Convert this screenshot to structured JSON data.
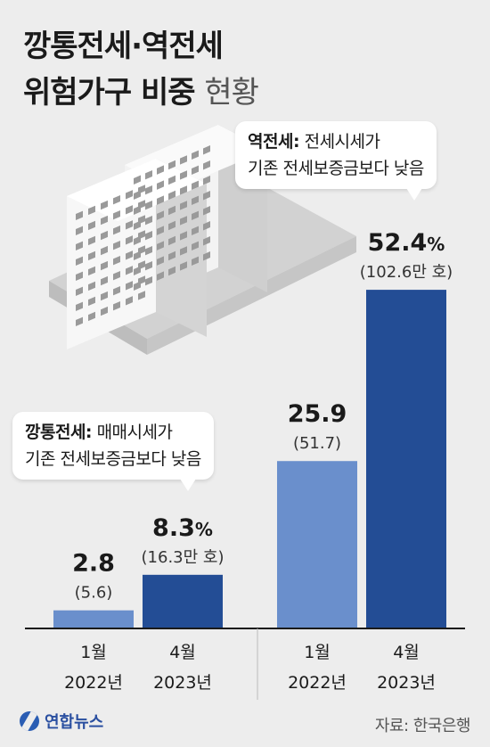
{
  "title": {
    "line1": "깡통전세·역전세",
    "line2_bold": "위험가구 비중",
    "line2_light": "현황"
  },
  "callouts": {
    "kkangtong": {
      "term": "깡통전세:",
      "desc1": "매매시세가",
      "desc2": "기존 전세보증금보다 낮음"
    },
    "yeokjeonse": {
      "term": "역전세:",
      "desc1": "전세시세가",
      "desc2": "기존 전세보증금보다 낮음"
    }
  },
  "chart_data": {
    "type": "bar",
    "groups": [
      "깡통전세",
      "역전세"
    ],
    "bars": [
      {
        "group": 0,
        "period": "1월",
        "year": "2022년",
        "value": 2.8,
        "value_label": "2.8",
        "unit": "",
        "households_label": "(5.6)",
        "color": "#6a8fcc"
      },
      {
        "group": 0,
        "period": "4월",
        "year": "2023년",
        "value": 8.3,
        "value_label": "8.3",
        "unit": "%",
        "households_label": "(16.3만 호)",
        "color": "#234d95"
      },
      {
        "group": 1,
        "period": "1월",
        "year": "2022년",
        "value": 25.9,
        "value_label": "25.9",
        "unit": "",
        "households_label": "(51.7)",
        "color": "#6a8fcc"
      },
      {
        "group": 1,
        "period": "4월",
        "year": "2023년",
        "value": 52.4,
        "value_label": "52.4",
        "unit": "%",
        "households_label": "(102.6만 호)",
        "color": "#234d95"
      }
    ],
    "ylim": [
      0,
      60
    ],
    "grid": false,
    "legend": "none"
  },
  "footer": {
    "logo_text": "연합뉴스",
    "source": "자료: 한국은행"
  }
}
